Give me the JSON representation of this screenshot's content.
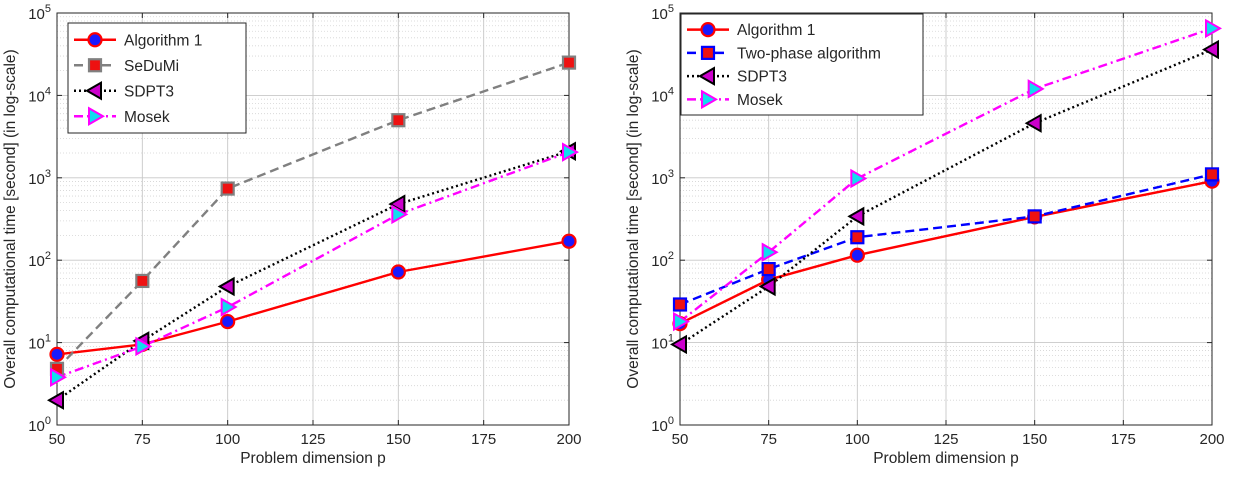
{
  "chart_data": [
    {
      "type": "line",
      "xlabel": "Problem dimension p",
      "ylabel": "Overall computational time [second] (in log-scale)",
      "x": [
        50,
        75,
        100,
        150,
        200
      ],
      "xticks": [
        "50",
        "75",
        "100",
        "125",
        "150",
        "175",
        "200"
      ],
      "xlim": [
        50,
        200
      ],
      "ylim": [
        1,
        100000
      ],
      "yscale": "log",
      "yticks": [
        {
          "base": "10",
          "exp": "0"
        },
        {
          "base": "10",
          "exp": "1"
        },
        {
          "base": "10",
          "exp": "2"
        },
        {
          "base": "10",
          "exp": "3"
        },
        {
          "base": "10",
          "exp": "4"
        },
        {
          "base": "10",
          "exp": "5"
        }
      ],
      "grid": true,
      "legend_position": "top-left",
      "series": [
        {
          "name": "Algorithm 1",
          "values": [
            7.2,
            9.5,
            18,
            72,
            170
          ],
          "line_color": "#ff0000",
          "marker_fill": "#1a1aff",
          "marker_edge": "#ff0000",
          "dash": "solid",
          "marker": "circle"
        },
        {
          "name": "SeDuMi",
          "values": [
            4.8,
            56,
            740,
            5000,
            25000
          ],
          "line_color": "#808080",
          "marker_fill": "#ee1111",
          "marker_edge": "#808080",
          "dash": "dashed",
          "marker": "square"
        },
        {
          "name": "SDPT3",
          "values": [
            2.0,
            10.5,
            48,
            480,
            2100
          ],
          "line_color": "#000000",
          "marker_fill": "#cc00cc",
          "marker_edge": "#000000",
          "dash": "dotted",
          "marker": "triangle-left"
        },
        {
          "name": "Mosek",
          "values": [
            3.8,
            9,
            27,
            360,
            2050
          ],
          "line_color": "#ff00ff",
          "marker_fill": "#11ddee",
          "marker_edge": "#ff00ff",
          "dash": "dashdot",
          "marker": "triangle-right"
        }
      ]
    },
    {
      "type": "line",
      "xlabel": "Problem dimension p",
      "ylabel": "Overall computational time [second] (in log-scale)",
      "x": [
        50,
        75,
        100,
        150,
        200
      ],
      "xticks": [
        "50",
        "75",
        "100",
        "125",
        "150",
        "175",
        "200"
      ],
      "xlim": [
        50,
        200
      ],
      "ylim": [
        1,
        100000
      ],
      "yscale": "log",
      "yticks": [
        {
          "base": "10",
          "exp": "0"
        },
        {
          "base": "10",
          "exp": "1"
        },
        {
          "base": "10",
          "exp": "2"
        },
        {
          "base": "10",
          "exp": "3"
        },
        {
          "base": "10",
          "exp": "4"
        },
        {
          "base": "10",
          "exp": "5"
        }
      ],
      "grid": true,
      "legend_position": "top-left",
      "series": [
        {
          "name": "Algorithm 1",
          "values": [
            17,
            58,
            115,
            335,
            910
          ],
          "line_color": "#ff0000",
          "marker_fill": "#1a1aff",
          "marker_edge": "#ff0000",
          "dash": "solid",
          "marker": "circle"
        },
        {
          "name": "Two-phase algorithm",
          "values": [
            29,
            78,
            190,
            340,
            1100
          ],
          "line_color": "#0000ff",
          "marker_fill": "#ee1111",
          "marker_edge": "#0000ff",
          "dash": "dashed",
          "marker": "square"
        },
        {
          "name": "SDPT3",
          "values": [
            9.5,
            48,
            340,
            4600,
            36000
          ],
          "line_color": "#000000",
          "marker_fill": "#cc00cc",
          "marker_edge": "#000000",
          "dash": "dotted",
          "marker": "triangle-left"
        },
        {
          "name": "Mosek",
          "values": [
            18,
            125,
            980,
            12000,
            65000
          ],
          "line_color": "#ff00ff",
          "marker_fill": "#11ddee",
          "marker_edge": "#ff00ff",
          "dash": "dashdot",
          "marker": "triangle-right"
        }
      ]
    }
  ]
}
